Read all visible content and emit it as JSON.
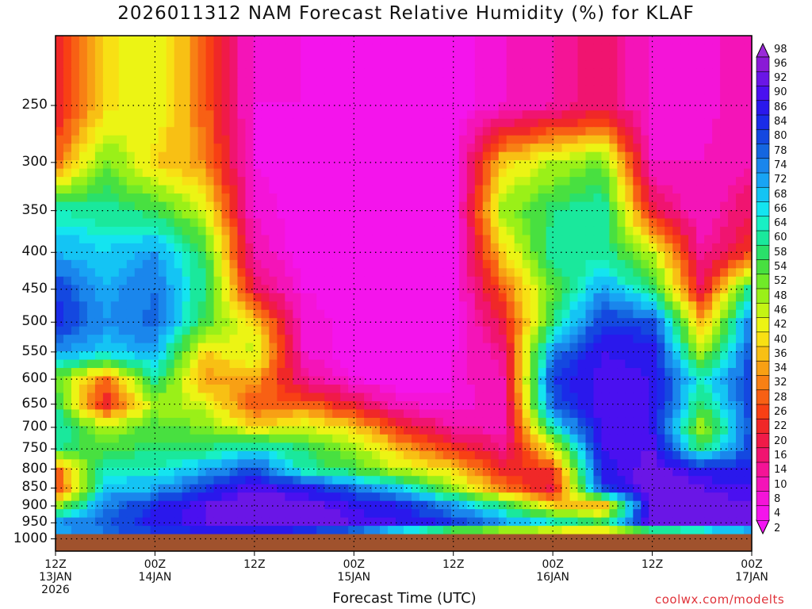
{
  "chart_data": {
    "type": "heatmap",
    "title": "2026011312 NAM Forecast Relative Humidity (%) for KLAF",
    "xlabel": "Forecast Time (UTC)",
    "ylabel": "",
    "x_ticks": [
      {
        "lines": [
          "12Z",
          "13JAN",
          "2026"
        ],
        "hour": 0
      },
      {
        "lines": [
          "00Z",
          "14JAN"
        ],
        "hour": 12
      },
      {
        "lines": [
          "12Z"
        ],
        "hour": 24
      },
      {
        "lines": [
          "00Z",
          "15JAN"
        ],
        "hour": 36
      },
      {
        "lines": [
          "12Z"
        ],
        "hour": 48
      },
      {
        "lines": [
          "00Z",
          "16JAN"
        ],
        "hour": 60
      },
      {
        "lines": [
          "12Z"
        ],
        "hour": 72
      },
      {
        "lines": [
          "00Z",
          "17JAN"
        ],
        "hour": 84
      }
    ],
    "x_hours_range": [
      0,
      84
    ],
    "y_pressure_levels": [
      250,
      300,
      350,
      400,
      450,
      500,
      550,
      600,
      650,
      700,
      750,
      800,
      850,
      900,
      950,
      1000
    ],
    "y_range_hpa": [
      200,
      1040
    ],
    "grid": true,
    "colorbar": {
      "labels": [
        "98",
        "96",
        "92",
        "90",
        "86",
        "84",
        "80",
        "78",
        "74",
        "72",
        "68",
        "66",
        "64",
        "60",
        "58",
        "54",
        "52",
        "48",
        "46",
        "42",
        "40",
        "36",
        "34",
        "32",
        "28",
        "26",
        "22",
        "20",
        "16",
        "14",
        "10",
        "8",
        "4",
        "2"
      ],
      "colors": [
        "#8a1ad6",
        "#6a16e6",
        "#4a10f0",
        "#2a18ec",
        "#1a2ce8",
        "#1448e0",
        "#1466e0",
        "#1a86ec",
        "#18a4f4",
        "#14c4f4",
        "#14e4f0",
        "#18f0c4",
        "#1ae89c",
        "#2ae06a",
        "#48e040",
        "#70ea28",
        "#9af018",
        "#c4f414",
        "#ecf414",
        "#f8e014",
        "#f8c014",
        "#f8a014",
        "#f88014",
        "#f86014",
        "#f84014",
        "#f02828",
        "#f01a48",
        "#f01470",
        "#f41496",
        "#f414b8",
        "#f414d8",
        "#f414ec"
      ]
    },
    "ground": {
      "from_hpa": 985,
      "color": "#a0522d"
    },
    "values_description_note": "",
    "rh_field": {
      "times_hr": [
        0,
        6,
        12,
        18,
        24,
        30,
        36,
        42,
        48,
        54,
        60,
        66,
        72,
        78,
        84
      ],
      "levels_hpa": [
        250,
        300,
        350,
        400,
        450,
        500,
        550,
        600,
        650,
        700,
        750,
        800,
        850,
        900,
        950,
        975
      ],
      "rh": [
        [
          22,
          40,
          46,
          30,
          8,
          8,
          6,
          6,
          6,
          10,
          14,
          18,
          10,
          8,
          14
        ],
        [
          30,
          54,
          40,
          34,
          8,
          6,
          6,
          6,
          6,
          40,
          48,
          54,
          10,
          10,
          14
        ],
        [
          64,
          62,
          58,
          46,
          10,
          6,
          6,
          6,
          6,
          50,
          60,
          64,
          22,
          10,
          20
        ],
        [
          72,
          68,
          74,
          58,
          12,
          6,
          6,
          6,
          6,
          40,
          62,
          62,
          48,
          14,
          26
        ],
        [
          84,
          72,
          78,
          60,
          20,
          8,
          6,
          6,
          6,
          30,
          54,
          74,
          60,
          20,
          64
        ],
        [
          86,
          74,
          80,
          56,
          40,
          10,
          6,
          6,
          6,
          22,
          60,
          84,
          82,
          36,
          78
        ],
        [
          74,
          70,
          72,
          40,
          48,
          10,
          6,
          6,
          8,
          16,
          76,
          90,
          88,
          48,
          82
        ],
        [
          54,
          30,
          62,
          34,
          36,
          16,
          8,
          6,
          8,
          14,
          84,
          92,
          90,
          64,
          84
        ],
        [
          60,
          22,
          50,
          46,
          28,
          30,
          22,
          10,
          8,
          12,
          80,
          92,
          90,
          58,
          84
        ],
        [
          66,
          48,
          56,
          52,
          42,
          46,
          40,
          24,
          14,
          12,
          64,
          92,
          90,
          48,
          82
        ],
        [
          60,
          56,
          60,
          60,
          66,
          60,
          50,
          36,
          26,
          16,
          44,
          90,
          92,
          58,
          84
        ],
        [
          30,
          64,
          64,
          72,
          82,
          62,
          56,
          46,
          40,
          24,
          26,
          88,
          94,
          88,
          86
        ],
        [
          24,
          70,
          72,
          84,
          92,
          88,
          78,
          68,
          50,
          32,
          20,
          84,
          96,
          92,
          90
        ],
        [
          50,
          76,
          86,
          92,
          96,
          94,
          90,
          86,
          74,
          60,
          40,
          34,
          96,
          94,
          92
        ],
        [
          74,
          80,
          88,
          92,
          96,
          96,
          92,
          90,
          84,
          74,
          66,
          58,
          96,
          96,
          94
        ],
        [
          72,
          78,
          84,
          86,
          88,
          84,
          78,
          66,
          54,
          48,
          44,
          42,
          56,
          62,
          70
        ]
      ]
    }
  },
  "watermark": "coolwx.com/modelts"
}
